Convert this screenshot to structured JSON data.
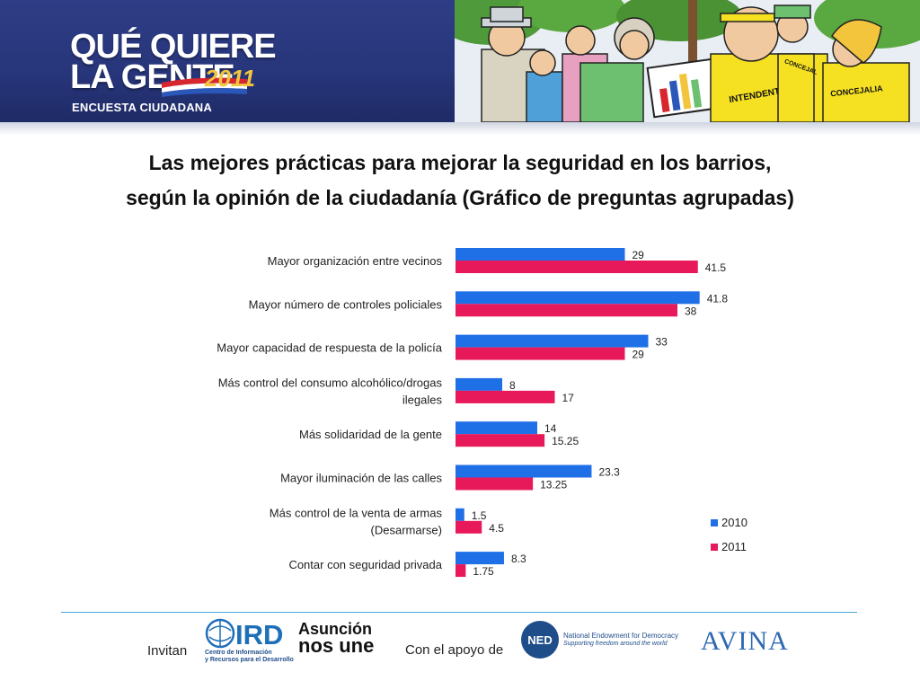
{
  "header": {
    "logo_line1": "QUÉ QUIERE",
    "logo_line2": "LA GENTE",
    "logo_year": "2011",
    "logo_subtitle": "ENCUESTA CIUDADANA",
    "cartoon_signs": [
      "INTENDENTE",
      "CONCEJALIA",
      "CONCEJAL"
    ],
    "colors": {
      "banner": "#2c3a82",
      "year": "#f2c53d"
    }
  },
  "title": {
    "line1": "Las mejores prácticas para mejorar la seguridad en los barrios,",
    "line2": "según la opinión de la ciudadanía (Gráfico de preguntas agrupadas)"
  },
  "chart_data": {
    "type": "bar",
    "orientation": "horizontal",
    "categories": [
      [
        "Mayor organización entre vecinos"
      ],
      [
        "Mayor número de controles policiales"
      ],
      [
        "Mayor capacidad de respuesta de la policía"
      ],
      [
        "Más control del consumo alcohólico/drogas",
        "ilegales"
      ],
      [
        "Más solidaridad de la gente"
      ],
      [
        "Mayor iluminación de las calles"
      ],
      [
        "Más control de la venta de armas",
        "(Desarmarse)"
      ],
      [
        "Contar con seguridad privada"
      ]
    ],
    "series": [
      {
        "name": "2010",
        "color": "#1f6fe6",
        "values": [
          29,
          41.8,
          33,
          8,
          14,
          23.3,
          1.5,
          8.3
        ],
        "labels": [
          "29",
          "41.8",
          "33",
          "8",
          "14",
          "23.3",
          "1.5",
          "8.3"
        ]
      },
      {
        "name": "2011",
        "color": "#e8195a",
        "values": [
          41.5,
          38,
          29,
          17,
          15.25,
          13.25,
          4.5,
          1.75
        ],
        "labels": [
          "41.5",
          "38",
          "29",
          "17",
          "15.25",
          "13.25",
          "4.5",
          "1.75"
        ]
      }
    ],
    "xlim": [
      0,
      45
    ],
    "grid": false,
    "axes_visible": false,
    "legend": "bottom-right"
  },
  "footer": {
    "invitan": "Invitan",
    "ird_name": "IRD",
    "ird_sub_line1": "Centro de Información",
    "ird_sub_line2": "y Recursos para el Desarrollo",
    "asuncion_line1": "Asunción",
    "asuncion_line2": "nos une",
    "apoyo": "Con el apoyo de",
    "ned_abbr": "NED",
    "ned_name": "National Endowment for Democracy",
    "ned_tagline": "Supporting freedom around the world",
    "avina": "AVINA",
    "colors": {
      "rule": "#4aa3df",
      "ned": "#1f4d8a",
      "avina": "#2d68b3"
    }
  }
}
